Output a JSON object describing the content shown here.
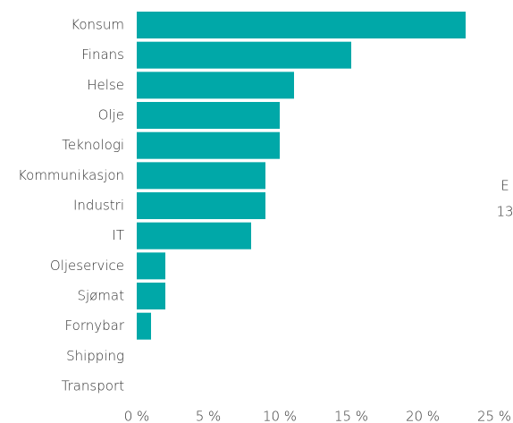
{
  "chart_data": {
    "type": "hbar",
    "categories": [
      "Konsum",
      "Finans",
      "Helse",
      "Olje",
      "Teknologi",
      "Kommunikasjon",
      "Industri",
      "IT",
      "Oljeservice",
      "Sjømat",
      "Fornybar",
      "Shipping",
      "Transport"
    ],
    "values": [
      23,
      15,
      11,
      10,
      10,
      9,
      9,
      8,
      2,
      2,
      1,
      0,
      0
    ],
    "color": "#00a8a8",
    "xlim": [
      0,
      25
    ],
    "xticks": [
      {
        "value": 0,
        "label": "0 %"
      },
      {
        "value": 5,
        "label": "5 %"
      },
      {
        "value": 10,
        "label": "10 %"
      },
      {
        "value": 15,
        "label": "15 %"
      },
      {
        "value": 20,
        "label": "20 %"
      },
      {
        "value": 25,
        "label": "25 %"
      }
    ],
    "annotations": [
      "E",
      "13"
    ]
  }
}
